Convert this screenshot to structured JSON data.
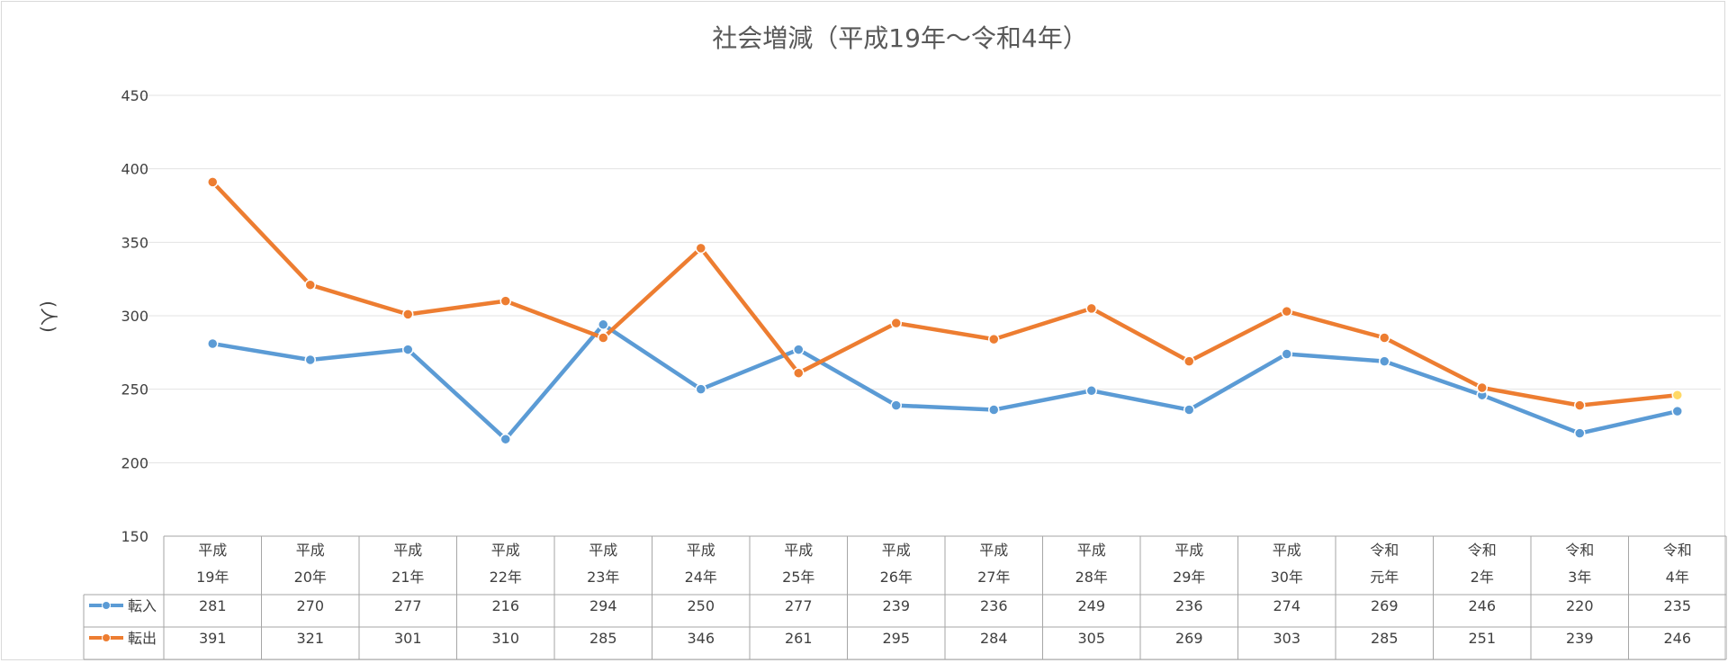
{
  "chart_data": {
    "type": "line",
    "title": "社会増減（平成19年～令和4年）",
    "ylabel": "(人)",
    "ylim": [
      150,
      450
    ],
    "yticks": [
      150,
      200,
      250,
      300,
      350,
      400,
      450
    ],
    "grid": true,
    "legend": "data-table-left",
    "categories": [
      [
        "平成",
        "19年"
      ],
      [
        "平成",
        "20年"
      ],
      [
        "平成",
        "21年"
      ],
      [
        "平成",
        "22年"
      ],
      [
        "平成",
        "23年"
      ],
      [
        "平成",
        "24年"
      ],
      [
        "平成",
        "25年"
      ],
      [
        "平成",
        "26年"
      ],
      [
        "平成",
        "27年"
      ],
      [
        "平成",
        "28年"
      ],
      [
        "平成",
        "29年"
      ],
      [
        "平成",
        "30年"
      ],
      [
        "令和",
        "元年"
      ],
      [
        "令和",
        "2年"
      ],
      [
        "令和",
        "3年"
      ],
      [
        "令和",
        "4年"
      ]
    ],
    "series": [
      {
        "name": "転入",
        "color": "#5b9bd5",
        "values": [
          281,
          270,
          277,
          216,
          294,
          250,
          277,
          239,
          236,
          249,
          236,
          274,
          269,
          246,
          220,
          235
        ]
      },
      {
        "name": "転出",
        "color": "#ed7d31",
        "values": [
          391,
          321,
          301,
          310,
          285,
          346,
          261,
          295,
          284,
          305,
          269,
          303,
          285,
          251,
          239,
          246
        ]
      }
    ],
    "highlight_point_color": "#ffd966"
  }
}
